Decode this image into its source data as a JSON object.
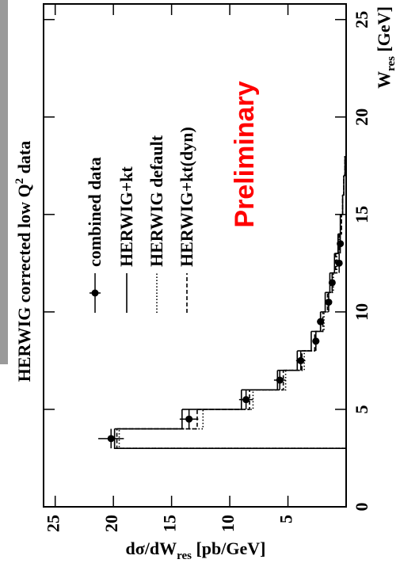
{
  "chart_data": {
    "type": "histogram",
    "title": {
      "text": "HERWIG corrected low Q",
      "sup": "2",
      "tail": " data"
    },
    "xlabel": {
      "main": "W",
      "sub": "res",
      "unit": " [GeV]"
    },
    "ylabel": {
      "main": "dσ/dW",
      "sub": "res",
      "unit": " [pb/GeV]"
    },
    "annotation": "Preliminary",
    "xlim": [
      0,
      25.8
    ],
    "ylim": [
      0,
      26
    ],
    "xticks": [
      0,
      5,
      10,
      15,
      20,
      25
    ],
    "yticks": [
      5,
      10,
      15,
      20,
      25
    ],
    "bins": [
      3,
      4,
      5,
      6,
      7,
      8,
      9,
      10,
      11,
      12,
      13,
      14,
      15,
      16,
      17,
      18
    ],
    "series": [
      {
        "name": "HERWIG+kt",
        "color": "#000000",
        "dash": "none",
        "values": [
          19.9,
          14.1,
          9.0,
          5.9,
          4.2,
          3.0,
          2.2,
          1.8,
          1.4,
          1.0,
          0.7,
          0.5,
          0.3,
          0.2,
          0.1
        ]
      },
      {
        "name": "HERWIG default",
        "color": "#000000",
        "dash": "1.5,2.5",
        "values": [
          19.5,
          12.3,
          8.0,
          5.2,
          3.6,
          2.6,
          1.9,
          1.5,
          1.1,
          0.8,
          0.6,
          0.4,
          0.3,
          0.2,
          0.1
        ]
      },
      {
        "name": "HERWIG+kt(dyn)",
        "color": "#000000",
        "dash": "5,3",
        "values": [
          19.7,
          12.8,
          8.3,
          5.4,
          3.8,
          2.7,
          2.0,
          1.6,
          1.2,
          0.9,
          0.6,
          0.4,
          0.3,
          0.2,
          0.1
        ]
      }
    ],
    "points": {
      "name": "combined data",
      "color": "#000000",
      "x": [
        3.5,
        4.5,
        5.5,
        6.5,
        7.5,
        8.5,
        9.5,
        10.5,
        11.5,
        12.5,
        13.5
      ],
      "xerr": [
        0.5,
        0.5,
        0.5,
        0.5,
        0.5,
        0.5,
        0.5,
        0.5,
        0.5,
        0.5,
        0.5
      ],
      "values": [
        20.2,
        13.5,
        8.6,
        5.7,
        3.9,
        2.6,
        2.2,
        1.5,
        1.2,
        0.6,
        0.5
      ],
      "errors": [
        1.1,
        0.8,
        0.6,
        0.5,
        0.4,
        0.3,
        0.3,
        0.2,
        0.2,
        0.2,
        0.2
      ]
    }
  }
}
